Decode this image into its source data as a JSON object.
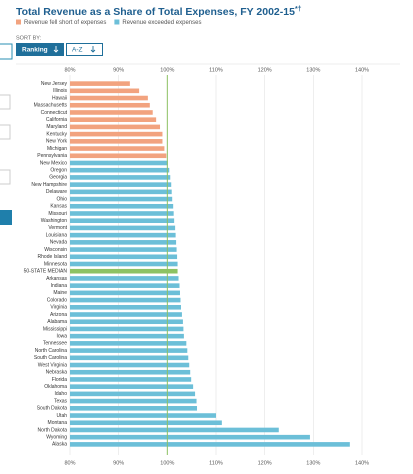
{
  "chart_data": {
    "type": "barh",
    "title": "Total Revenue as a Share of Total Expenses, FY 2002-15",
    "title_marks": "*†",
    "legend": [
      {
        "name": "Revenue fell short of expenses",
        "color": "#f2a37f"
      },
      {
        "name": "Revenue exceeded expenses",
        "color": "#6cbfd8"
      }
    ],
    "sort": {
      "label": "SORT BY:",
      "options": [
        "Ranking",
        "A-Z"
      ]
    },
    "categories": [
      "New Jersey",
      "Illinois",
      "Hawaii",
      "Massachusetts",
      "Connecticut",
      "California",
      "Maryland",
      "Kentucky",
      "New York",
      "Michigan",
      "Pennsylvania",
      "New Mexico",
      "Oregon",
      "Georgia",
      "New Hampshire",
      "Delaware",
      "Ohio",
      "Kansas",
      "Missouri",
      "Washington",
      "Vermont",
      "Louisiana",
      "Nevada",
      "Wisconsin",
      "Rhode Island",
      "Minnesota",
      "50-STATE MEDIAN",
      "Arkansas",
      "Indiana",
      "Maine",
      "Colorado",
      "Virginia",
      "Arizona",
      "Alabama",
      "Mississippi",
      "Iowa",
      "Tennessee",
      "North Carolina",
      "South Carolina",
      "West Virginia",
      "Nebraska",
      "Florida",
      "Oklahoma",
      "Idaho",
      "Texas",
      "South Dakota",
      "Utah",
      "Montana",
      "North Dakota",
      "Wyoming",
      "Alaska"
    ],
    "values": [
      92.3,
      94.2,
      96,
      96.4,
      97,
      97.7,
      98.5,
      99,
      99,
      99.4,
      99.8,
      100.1,
      100.4,
      100.6,
      100.8,
      100.9,
      101,
      101.2,
      101.3,
      101.4,
      101.6,
      101.7,
      101.8,
      101.9,
      102,
      102.1,
      102.1,
      102.3,
      102.5,
      102.6,
      102.7,
      102.8,
      103,
      103.2,
      103.3,
      103.4,
      103.9,
      104.1,
      104.3,
      104.5,
      104.7,
      104.9,
      105.3,
      105.7,
      106,
      106.1,
      110,
      111.2,
      122.9,
      129.3,
      137.5
    ],
    "colors": [
      "#f2a37f",
      "#f2a37f",
      "#f2a37f",
      "#f2a37f",
      "#f2a37f",
      "#f2a37f",
      "#f2a37f",
      "#f2a37f",
      "#f2a37f",
      "#f2a37f",
      "#f2a37f",
      "#6cbfd8",
      "#6cbfd8",
      "#6cbfd8",
      "#6cbfd8",
      "#6cbfd8",
      "#6cbfd8",
      "#6cbfd8",
      "#6cbfd8",
      "#6cbfd8",
      "#6cbfd8",
      "#6cbfd8",
      "#6cbfd8",
      "#6cbfd8",
      "#6cbfd8",
      "#6cbfd8",
      "#8dc263",
      "#6cbfd8",
      "#6cbfd8",
      "#6cbfd8",
      "#6cbfd8",
      "#6cbfd8",
      "#6cbfd8",
      "#6cbfd8",
      "#6cbfd8",
      "#6cbfd8",
      "#6cbfd8",
      "#6cbfd8",
      "#6cbfd8",
      "#6cbfd8",
      "#6cbfd8",
      "#6cbfd8",
      "#6cbfd8",
      "#6cbfd8",
      "#6cbfd8",
      "#6cbfd8",
      "#6cbfd8",
      "#6cbfd8",
      "#6cbfd8",
      "#6cbfd8",
      "#6cbfd8"
    ],
    "reference_line": {
      "value": 100,
      "color": "#8dc263"
    },
    "xlim": [
      80,
      140
    ],
    "xticks": [
      {
        "value": 80,
        "label": "80%"
      },
      {
        "value": 90,
        "label": "90%"
      },
      {
        "value": 100,
        "label": "100%"
      },
      {
        "value": 110,
        "label": "110%"
      },
      {
        "value": 120,
        "label": "120%"
      },
      {
        "value": 130,
        "label": "130%"
      },
      {
        "value": 140,
        "label": "140%"
      }
    ],
    "grid": true
  }
}
